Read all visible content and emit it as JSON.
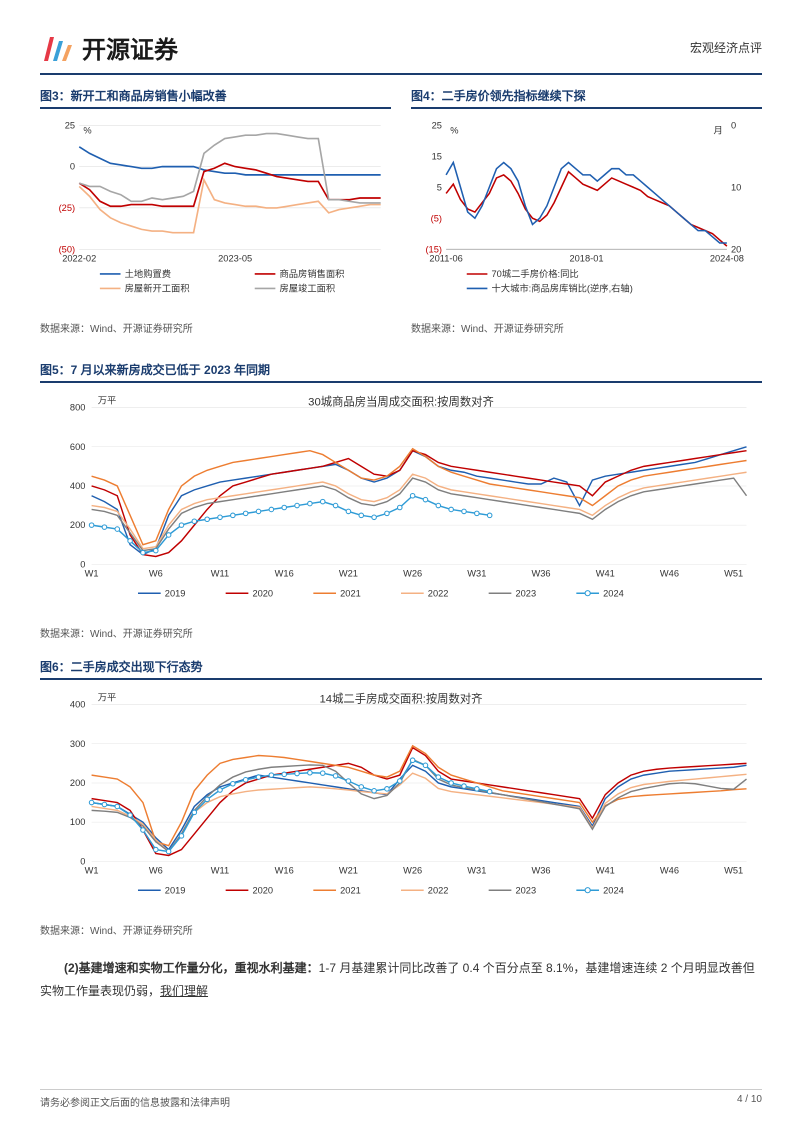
{
  "header": {
    "company": "开源证券",
    "category": "宏观经济点评"
  },
  "chart3": {
    "type": "line",
    "title": "图3：新开工和商品房销售小幅改善",
    "y_unit": "%",
    "ylim": [
      -50,
      25
    ],
    "yticks": [
      -50,
      -25,
      0,
      25
    ],
    "xticks": [
      "2022-02",
      "2023-05"
    ],
    "xtick_positions": [
      0,
      15
    ],
    "series": [
      {
        "name": "土地购置费",
        "color": "#1f5fb0",
        "values": [
          12,
          8,
          5,
          2,
          1,
          0,
          -1,
          -1,
          0,
          0,
          0,
          0,
          -2,
          -3,
          -4,
          -4,
          -5,
          -5,
          -5,
          -5,
          -5,
          -5,
          -5,
          -5,
          -5,
          -5,
          -5,
          -5,
          -5,
          -5
        ]
      },
      {
        "name": "商品房销售面积",
        "color": "#c00000",
        "values": [
          -10,
          -14,
          -21,
          -24,
          -24,
          -23,
          -23,
          -23,
          -24,
          -24,
          -24,
          -24,
          -3,
          -1,
          2,
          0,
          -1,
          -2,
          -4,
          -6,
          -7,
          -8,
          -9,
          -9,
          -20,
          -20,
          -20,
          -19,
          -19,
          -19
        ]
      },
      {
        "name": "房屋新开工面积",
        "color": "#f4b183",
        "values": [
          -12,
          -18,
          -26,
          -31,
          -34,
          -36,
          -38,
          -39,
          -39,
          -40,
          -40,
          -40,
          -8,
          -20,
          -22,
          -23,
          -24,
          -24,
          -25,
          -25,
          -24,
          -23,
          -22,
          -21,
          -28,
          -26,
          -25,
          -24,
          -23,
          -23
        ]
      },
      {
        "name": "房屋竣工面积",
        "color": "#a6a6a6",
        "values": [
          -10,
          -12,
          -12,
          -15,
          -17,
          -21,
          -21,
          -19,
          -20,
          -19,
          -18,
          -15,
          8,
          13,
          17,
          18,
          19,
          19,
          20,
          20,
          19,
          18,
          17,
          17,
          -20,
          -20,
          -21,
          -22,
          -22,
          -22
        ]
      }
    ],
    "background_color": "#ffffff",
    "grid_color": "#d9d9d9",
    "source": "数据来源：Wind、开源证券研究所"
  },
  "chart4": {
    "type": "line_dual_axis",
    "title": "图4：二手房价领先指标继续下探",
    "y_left_unit": "%",
    "y_right_unit": "月",
    "ylim_left": [
      -15,
      25
    ],
    "yticks_left": [
      -15,
      -5,
      5,
      15,
      25
    ],
    "ylim_right": [
      20,
      0
    ],
    "yticks_right": [
      20,
      10,
      0
    ],
    "xticks": [
      "2011-06",
      "2018-01",
      "2024-08"
    ],
    "series": [
      {
        "name": "70城二手房价格:同比",
        "color": "#c00000",
        "axis": "left",
        "values": [
          3,
          6,
          1,
          -2,
          -3,
          0,
          3,
          8,
          9,
          7,
          3,
          -2,
          -5,
          -6,
          -4,
          0,
          5,
          10,
          8,
          6,
          5,
          4,
          6,
          8,
          7,
          6,
          5,
          4,
          2,
          1,
          0,
          -1,
          -3,
          -5,
          -7,
          -8,
          -9,
          -10,
          -12,
          -14
        ]
      },
      {
        "name": "十大城市:商品房库销比(逆序,右轴)",
        "color": "#1f5fb0",
        "axis": "right",
        "values": [
          8,
          6,
          10,
          14,
          15,
          13,
          10,
          7,
          6,
          7,
          9,
          13,
          16,
          15,
          13,
          10,
          7,
          6,
          7,
          8,
          8,
          9,
          8,
          7,
          7,
          8,
          8,
          9,
          10,
          11,
          12,
          13,
          14,
          15,
          16,
          17,
          17,
          18,
          19,
          19
        ]
      }
    ],
    "background_color": "#ffffff",
    "source": "数据来源：Wind、开源证券研究所"
  },
  "chart5": {
    "type": "line",
    "title": "图5：7 月以来新房成交已低于 2023 年同期",
    "subtitle": "30城商品房当周成交面积:按周数对齐",
    "y_unit": "万平",
    "ylim": [
      0,
      800
    ],
    "yticks": [
      0,
      200,
      400,
      600,
      800
    ],
    "xticks": [
      "W1",
      "W6",
      "W11",
      "W16",
      "W21",
      "W26",
      "W31",
      "W36",
      "W41",
      "W46",
      "W51"
    ],
    "series": [
      {
        "name": "2019",
        "color": "#1f5fb0",
        "values": [
          350,
          320,
          280,
          100,
          50,
          80,
          250,
          350,
          380,
          400,
          420,
          430,
          440,
          450,
          460,
          470,
          480,
          490,
          500,
          510,
          480,
          440,
          420,
          440,
          480,
          580,
          550,
          500,
          480,
          470,
          450,
          440,
          430,
          420,
          410,
          410,
          440,
          420,
          300,
          430,
          450,
          460,
          470,
          480,
          490,
          500,
          510,
          520,
          540,
          560,
          580,
          600
        ]
      },
      {
        "name": "2020",
        "color": "#c00000",
        "values": [
          400,
          380,
          350,
          150,
          50,
          40,
          60,
          120,
          200,
          280,
          350,
          400,
          420,
          440,
          460,
          470,
          480,
          490,
          500,
          520,
          540,
          500,
          460,
          450,
          480,
          580,
          560,
          520,
          500,
          490,
          480,
          470,
          460,
          450,
          440,
          430,
          420,
          410,
          400,
          350,
          420,
          450,
          480,
          500,
          510,
          520,
          530,
          540,
          550,
          560,
          570,
          580
        ]
      },
      {
        "name": "2021",
        "color": "#ed7d31",
        "values": [
          450,
          430,
          400,
          250,
          100,
          120,
          280,
          400,
          450,
          480,
          500,
          520,
          530,
          540,
          550,
          560,
          570,
          580,
          560,
          520,
          480,
          440,
          430,
          450,
          500,
          590,
          550,
          500,
          470,
          450,
          430,
          410,
          400,
          390,
          380,
          370,
          360,
          350,
          340,
          300,
          350,
          400,
          430,
          450,
          460,
          470,
          480,
          490,
          500,
          510,
          520,
          530
        ]
      },
      {
        "name": "2022",
        "color": "#f4b183",
        "values": [
          300,
          290,
          270,
          180,
          80,
          90,
          200,
          280,
          310,
          330,
          340,
          350,
          360,
          370,
          380,
          390,
          400,
          410,
          420,
          400,
          360,
          330,
          320,
          340,
          380,
          460,
          440,
          400,
          380,
          370,
          360,
          350,
          340,
          330,
          320,
          310,
          300,
          290,
          280,
          250,
          300,
          340,
          370,
          390,
          400,
          410,
          420,
          430,
          440,
          450,
          460,
          470
        ]
      },
      {
        "name": "2023",
        "color": "#7f7f7f",
        "values": [
          280,
          270,
          250,
          160,
          70,
          80,
          180,
          260,
          290,
          310,
          320,
          330,
          340,
          350,
          360,
          370,
          380,
          390,
          400,
          380,
          340,
          310,
          300,
          320,
          360,
          440,
          420,
          380,
          360,
          350,
          340,
          330,
          320,
          310,
          300,
          290,
          280,
          270,
          260,
          230,
          280,
          320,
          350,
          370,
          380,
          390,
          400,
          410,
          420,
          430,
          440,
          350
        ]
      },
      {
        "name": "2024",
        "color": "#2e9bd6",
        "marker": "circle",
        "values": [
          200,
          190,
          180,
          120,
          60,
          70,
          150,
          200,
          220,
          230,
          240,
          250,
          260,
          270,
          280,
          290,
          300,
          310,
          320,
          300,
          270,
          250,
          240,
          260,
          290,
          350,
          330,
          300,
          280,
          270,
          260,
          250
        ]
      }
    ],
    "background_color": "#ffffff",
    "grid_color": "#e0e0e0",
    "source": "数据来源：Wind、开源证券研究所"
  },
  "chart6": {
    "type": "line",
    "title": "图6：二手房成交出现下行态势",
    "subtitle": "14城二手房成交面积:按周数对齐",
    "y_unit": "万平",
    "ylim": [
      0,
      400
    ],
    "yticks": [
      0,
      100,
      200,
      300,
      400
    ],
    "xticks": [
      "W1",
      "W6",
      "W11",
      "W16",
      "W21",
      "W26",
      "W31",
      "W36",
      "W41",
      "W46",
      "W51"
    ],
    "series": [
      {
        "name": "2019",
        "color": "#1f5fb0",
        "values": [
          150,
          145,
          140,
          120,
          100,
          60,
          30,
          80,
          140,
          170,
          190,
          200,
          210,
          220,
          215,
          210,
          205,
          200,
          195,
          190,
          185,
          180,
          175,
          170,
          210,
          245,
          230,
          200,
          190,
          185,
          180,
          175,
          170,
          165,
          160,
          155,
          150,
          145,
          140,
          90,
          160,
          190,
          210,
          220,
          225,
          230,
          232,
          234,
          236,
          238,
          240,
          245
        ]
      },
      {
        "name": "2020",
        "color": "#c00000",
        "values": [
          160,
          155,
          150,
          130,
          80,
          20,
          15,
          30,
          70,
          110,
          150,
          180,
          200,
          210,
          220,
          225,
          230,
          235,
          240,
          245,
          250,
          240,
          220,
          210,
          220,
          290,
          270,
          230,
          210,
          205,
          200,
          195,
          190,
          185,
          180,
          175,
          170,
          165,
          160,
          110,
          170,
          200,
          220,
          230,
          235,
          238,
          240,
          242,
          244,
          246,
          248,
          250
        ]
      },
      {
        "name": "2021",
        "color": "#ed7d31",
        "values": [
          220,
          215,
          210,
          190,
          150,
          50,
          40,
          100,
          180,
          220,
          250,
          260,
          265,
          270,
          268,
          265,
          260,
          255,
          250,
          245,
          240,
          230,
          220,
          215,
          230,
          295,
          275,
          240,
          220,
          210,
          200,
          190,
          180,
          175,
          170,
          165,
          160,
          155,
          150,
          100,
          142,
          158,
          165,
          168,
          170,
          172,
          174,
          176,
          178,
          180,
          183,
          185
        ]
      },
      {
        "name": "2022",
        "color": "#f4b183",
        "values": [
          140,
          135,
          130,
          115,
          95,
          55,
          25,
          70,
          125,
          150,
          165,
          172,
          178,
          182,
          184,
          186,
          188,
          190,
          188,
          185,
          182,
          178,
          175,
          172,
          195,
          225,
          212,
          186,
          178,
          174,
          170,
          166,
          162,
          158,
          154,
          150,
          146,
          142,
          138,
          85,
          148,
          172,
          188,
          196,
          200,
          204,
          207,
          210,
          213,
          216,
          219,
          222
        ]
      },
      {
        "name": "2023",
        "color": "#7f7f7f",
        "values": [
          130,
          128,
          125,
          112,
          90,
          50,
          25,
          70,
          130,
          165,
          195,
          215,
          228,
          235,
          240,
          242,
          244,
          246,
          245,
          230,
          200,
          172,
          160,
          168,
          200,
          260,
          245,
          210,
          195,
          188,
          182,
          176,
          170,
          164,
          158,
          152,
          146,
          140,
          134,
          82,
          140,
          162,
          178,
          186,
          192,
          198,
          200,
          198,
          192,
          186,
          184,
          210
        ]
      },
      {
        "name": "2024",
        "color": "#2e9bd6",
        "marker": "circle",
        "values": [
          150,
          145,
          140,
          118,
          80,
          30,
          25,
          65,
          125,
          158,
          182,
          198,
          208,
          215,
          220,
          222,
          224,
          226,
          225,
          218,
          205,
          190,
          180,
          185,
          205,
          258,
          245,
          215,
          200,
          192,
          185,
          178
        ]
      }
    ],
    "background_color": "#ffffff",
    "grid_color": "#e0e0e0",
    "source": "数据来源：Wind、开源证券研究所"
  },
  "body": {
    "para1_bold": "(2)基建增速和实物工作量分化，重视水利基建：",
    "para1_rest": "1-7 月基建累计同比改善了 0.4 个百分点至 8.1%，基建增速连续 2 个月明显改善但实物工作量表现仍弱，",
    "para1_underline": "我们理解"
  },
  "footer": {
    "disclaimer": "请务必参阅正文后面的信息披露和法律声明",
    "page": "4 / 10"
  },
  "colors": {
    "primary": "#1a3c6e",
    "text": "#333333",
    "axis": "#595959"
  }
}
